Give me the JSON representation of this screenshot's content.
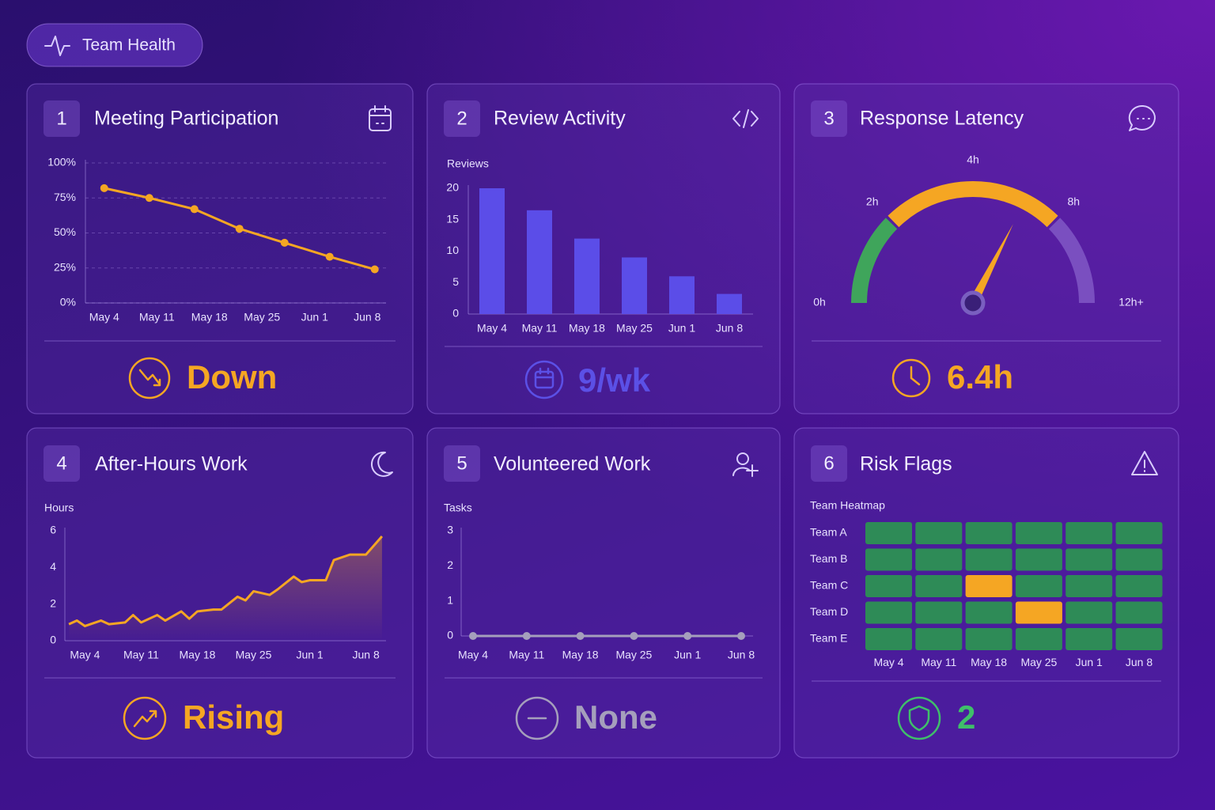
{
  "header": {
    "title": "Team Health"
  },
  "panels": [
    {
      "number": 1,
      "title": "Meeting Participation",
      "stat": "Down",
      "chart_data": {
        "type": "line",
        "x": [
          0,
          6,
          12,
          18,
          24,
          30,
          36
        ],
        "values": [
          82,
          75,
          67,
          53,
          43,
          33,
          24
        ],
        "color": "#f5a623",
        "markers": true,
        "xlim": [
          -2.5,
          37.5
        ],
        "xticks": [
          {
            "value": 0,
            "label": "May 4"
          },
          {
            "value": 7,
            "label": "May 11"
          },
          {
            "value": 14,
            "label": "May 18"
          },
          {
            "value": 21,
            "label": "May 25"
          },
          {
            "value": 28,
            "label": "Jun 1"
          },
          {
            "value": 35,
            "label": "Jun 8"
          }
        ],
        "ylim": [
          0,
          100
        ],
        "yticks": [
          {
            "value": 0,
            "label": "0%"
          },
          {
            "value": 25,
            "label": "25%"
          },
          {
            "value": 50,
            "label": "50%"
          },
          {
            "value": 75,
            "label": "75%"
          },
          {
            "value": 100,
            "label": "100%"
          }
        ],
        "grid": true
      }
    },
    {
      "number": 2,
      "title": "Review Activity",
      "stat": "9/wk",
      "chart_data": {
        "type": "bar",
        "y_label": "Reviews",
        "categories": [
          "May 4",
          "May 11",
          "May 18",
          "May 25",
          "Jun 1",
          "Jun 8"
        ],
        "values": [
          20,
          16.5,
          12,
          9,
          6,
          3.2
        ],
        "color": "#5b4de8",
        "ylim": [
          0,
          20
        ],
        "yticks": [
          0,
          5,
          10,
          15,
          20
        ],
        "grid": false
      }
    },
    {
      "number": 3,
      "title": "Response Latency",
      "chart_data": {
        "type": "gauge",
        "value": 6.4,
        "value_label": "6.4h",
        "needle_color": "#f5a623",
        "ticks": [
          {
            "value": 0,
            "label": "0h"
          },
          {
            "value": 2,
            "label": "2h"
          },
          {
            "value": 4,
            "label": "4h"
          },
          {
            "value": 8,
            "label": "8h"
          },
          {
            "value": 12,
            "label": "12h+"
          }
        ],
        "bands": [
          {
            "from": 0,
            "to": 2,
            "color": "#3fa55b"
          },
          {
            "from": 2,
            "to": 8,
            "color": "#f5a623"
          },
          {
            "from": 8,
            "to": 12,
            "color": "#7a4fc0"
          }
        ]
      }
    },
    {
      "number": 4,
      "title": "After-Hours Work",
      "stat": "Rising",
      "chart_data": {
        "type": "line",
        "y_label": "Hours",
        "fill_area": true,
        "markers": false,
        "color": "#f5a623",
        "x": [
          -2,
          -1,
          0,
          2,
          3,
          5,
          6,
          7,
          9,
          10,
          12,
          13,
          14,
          16,
          17,
          19,
          20,
          21,
          23,
          24,
          26,
          27,
          28,
          30,
          31,
          33,
          34,
          35,
          37
        ],
        "values": [
          0.9,
          1.1,
          0.8,
          1.1,
          0.9,
          1.0,
          1.4,
          1.0,
          1.4,
          1.1,
          1.6,
          1.2,
          1.6,
          1.7,
          1.7,
          2.4,
          2.2,
          2.7,
          2.5,
          2.8,
          3.5,
          3.2,
          3.3,
          3.3,
          4.4,
          4.7,
          4.7,
          4.7,
          5.7
        ],
        "xlim": [
          -2.5,
          37.5
        ],
        "xticks": [
          {
            "value": 0,
            "label": "May 4"
          },
          {
            "value": 7,
            "label": "May 11"
          },
          {
            "value": 14,
            "label": "May 18"
          },
          {
            "value": 21,
            "label": "May 25"
          },
          {
            "value": 28,
            "label": "Jun 1"
          },
          {
            "value": 35,
            "label": "Jun 8"
          }
        ],
        "ylim": [
          0,
          6
        ],
        "yticks": [
          0,
          2,
          4,
          6
        ],
        "grid": false
      }
    },
    {
      "number": 5,
      "title": "Volunteered Work",
      "stat": "None",
      "chart_data": {
        "type": "line",
        "y_label": "Tasks",
        "markers": true,
        "color": "#a59fbc",
        "categories": [
          "May 4",
          "May 11",
          "May 18",
          "May 25",
          "Jun 1",
          "Jun 8"
        ],
        "values": [
          0,
          0,
          0,
          0,
          0,
          0
        ],
        "ylim": [
          0,
          3
        ],
        "yticks": [
          0,
          1,
          2,
          3
        ],
        "grid": false
      }
    },
    {
      "number": 6,
      "title": "Risk Flags",
      "stat": "2",
      "chart_data": {
        "type": "heatmap",
        "subtitle": "Team Heatmap",
        "rows": [
          "Team A",
          "Team B",
          "Team C",
          "Team D",
          "Team E"
        ],
        "columns": [
          "May 4",
          "May 11",
          "May 18",
          "May 25",
          "Jun 1",
          "Jun 8"
        ],
        "values": [
          [
            0,
            0,
            0,
            0,
            0,
            0
          ],
          [
            0,
            0,
            0,
            0,
            0,
            0
          ],
          [
            0,
            0,
            1,
            0,
            0,
            0
          ],
          [
            0,
            0,
            0,
            1,
            0,
            0
          ],
          [
            0,
            0,
            0,
            0,
            0,
            0
          ]
        ],
        "colors": [
          "#2e8b57",
          "#f5a623"
        ]
      }
    }
  ]
}
